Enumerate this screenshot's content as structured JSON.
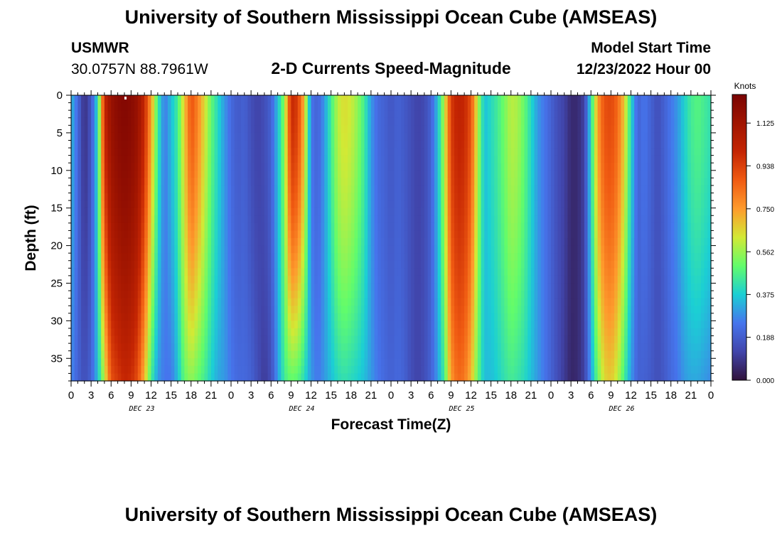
{
  "header": {
    "title": "University of Southern Mississippi Ocean Cube (AMSEAS)",
    "station": "USMWR",
    "coords": "30.0757N  88.7961W",
    "subtitle": "2-D Currents Speed-Magnitude",
    "start_label": "Model Start Time",
    "start_value": "12/23/2022 Hour 00"
  },
  "footer": {
    "title": "University of Southern Mississippi Ocean Cube (AMSEAS)"
  },
  "chart_data": {
    "type": "heatmap",
    "title": "2-D Currents Speed-Magnitude",
    "xlabel": "Forecast Time(Z)",
    "ylabel": "Depth (ft)",
    "x_hours_range": [
      0,
      96
    ],
    "ylim": [
      0,
      38
    ],
    "y_ticks": [
      0,
      5,
      10,
      15,
      20,
      25,
      30,
      35
    ],
    "x_tick_labels": [
      "0",
      "3",
      "6",
      "9",
      "12",
      "15",
      "18",
      "21",
      "0",
      "3",
      "6",
      "9",
      "12",
      "15",
      "18",
      "21",
      "0",
      "3",
      "6",
      "9",
      "12",
      "15",
      "18",
      "21",
      "0",
      "3",
      "6",
      "9",
      "12",
      "15",
      "18",
      "21",
      "0"
    ],
    "day_labels": [
      "DEC 23",
      "DEC 24",
      "DEC 25",
      "DEC 26"
    ],
    "colorbar": {
      "unit": "Knots",
      "range": [
        0,
        1.25
      ],
      "ticks": [
        "0.000",
        "0.188",
        "0.375",
        "0.562",
        "0.750",
        "0.938",
        "1.125"
      ]
    },
    "surface_speed_by_hour": [
      [
        0,
        0.35
      ],
      [
        1,
        0.22
      ],
      [
        2,
        0.07
      ],
      [
        3,
        0.17
      ],
      [
        4,
        0.4
      ],
      [
        5,
        1.0
      ],
      [
        6,
        1.15
      ],
      [
        7,
        1.2
      ],
      [
        8,
        1.22
      ],
      [
        9,
        1.2
      ],
      [
        10,
        1.15
      ],
      [
        11,
        1.0
      ],
      [
        12,
        0.75
      ],
      [
        13,
        0.45
      ],
      [
        14,
        0.25
      ],
      [
        15,
        0.35
      ],
      [
        16,
        0.45
      ],
      [
        17,
        0.68
      ],
      [
        18,
        0.9
      ],
      [
        19,
        0.8
      ],
      [
        20,
        0.65
      ],
      [
        21,
        0.5
      ],
      [
        22,
        0.4
      ],
      [
        23,
        0.3
      ],
      [
        24,
        0.22
      ],
      [
        25,
        0.18
      ],
      [
        26,
        0.2
      ],
      [
        27,
        0.15
      ],
      [
        28,
        0.12
      ],
      [
        29,
        0.15
      ],
      [
        30,
        0.2
      ],
      [
        31,
        0.35
      ],
      [
        32,
        0.55
      ],
      [
        33,
        1.0
      ],
      [
        34,
        0.95
      ],
      [
        35,
        0.7
      ],
      [
        36,
        0.25
      ],
      [
        37,
        0.2
      ],
      [
        38,
        0.3
      ],
      [
        39,
        0.45
      ],
      [
        40,
        0.6
      ],
      [
        41,
        0.65
      ],
      [
        42,
        0.62
      ],
      [
        43,
        0.55
      ],
      [
        44,
        0.45
      ],
      [
        45,
        0.3
      ],
      [
        46,
        0.22
      ],
      [
        47,
        0.2
      ],
      [
        48,
        0.17
      ],
      [
        49,
        0.2
      ],
      [
        50,
        0.18
      ],
      [
        51,
        0.15
      ],
      [
        52,
        0.12
      ],
      [
        53,
        0.14
      ],
      [
        54,
        0.2
      ],
      [
        55,
        0.35
      ],
      [
        56,
        0.6
      ],
      [
        57,
        0.95
      ],
      [
        58,
        1.02
      ],
      [
        59,
        1.0
      ],
      [
        60,
        0.9
      ],
      [
        61,
        0.6
      ],
      [
        62,
        0.35
      ],
      [
        63,
        0.4
      ],
      [
        64,
        0.45
      ],
      [
        65,
        0.52
      ],
      [
        66,
        0.6
      ],
      [
        67,
        0.58
      ],
      [
        68,
        0.5
      ],
      [
        69,
        0.4
      ],
      [
        70,
        0.3
      ],
      [
        71,
        0.25
      ],
      [
        72,
        0.2
      ],
      [
        73,
        0.15
      ],
      [
        74,
        0.12
      ],
      [
        75,
        0.06
      ],
      [
        76,
        0.06
      ],
      [
        77,
        0.12
      ],
      [
        78,
        0.4
      ],
      [
        79,
        0.75
      ],
      [
        80,
        0.9
      ],
      [
        81,
        0.92
      ],
      [
        82,
        0.85
      ],
      [
        83,
        0.68
      ],
      [
        84,
        0.4
      ],
      [
        85,
        0.2
      ],
      [
        86,
        0.25
      ],
      [
        87,
        0.2
      ],
      [
        88,
        0.15
      ],
      [
        89,
        0.2
      ],
      [
        90,
        0.25
      ],
      [
        91,
        0.3
      ],
      [
        92,
        0.38
      ],
      [
        93,
        0.45
      ],
      [
        94,
        0.48
      ],
      [
        95,
        0.45
      ],
      [
        96,
        0.42
      ]
    ],
    "bottom_speed_by_hour": [
      [
        0,
        0.28
      ],
      [
        1,
        0.2
      ],
      [
        2,
        0.15
      ],
      [
        3,
        0.2
      ],
      [
        4,
        0.35
      ],
      [
        5,
        0.6
      ],
      [
        6,
        0.9
      ],
      [
        7,
        0.95
      ],
      [
        8,
        1.0
      ],
      [
        9,
        0.98
      ],
      [
        10,
        0.9
      ],
      [
        11,
        0.7
      ],
      [
        12,
        0.45
      ],
      [
        13,
        0.3
      ],
      [
        14,
        0.25
      ],
      [
        15,
        0.25
      ],
      [
        16,
        0.35
      ],
      [
        17,
        0.5
      ],
      [
        18,
        0.55
      ],
      [
        19,
        0.5
      ],
      [
        20,
        0.45
      ],
      [
        21,
        0.38
      ],
      [
        22,
        0.32
      ],
      [
        23,
        0.3
      ],
      [
        24,
        0.25
      ],
      [
        25,
        0.22
      ],
      [
        26,
        0.22
      ],
      [
        27,
        0.2
      ],
      [
        28,
        0.15
      ],
      [
        29,
        0.1
      ],
      [
        30,
        0.15
      ],
      [
        31,
        0.3
      ],
      [
        32,
        0.45
      ],
      [
        33,
        0.5
      ],
      [
        34,
        0.48
      ],
      [
        35,
        0.4
      ],
      [
        36,
        0.3
      ],
      [
        37,
        0.25
      ],
      [
        38,
        0.3
      ],
      [
        39,
        0.35
      ],
      [
        40,
        0.4
      ],
      [
        41,
        0.42
      ],
      [
        42,
        0.4
      ],
      [
        43,
        0.38
      ],
      [
        44,
        0.35
      ],
      [
        45,
        0.3
      ],
      [
        46,
        0.25
      ],
      [
        47,
        0.22
      ],
      [
        48,
        0.2
      ],
      [
        49,
        0.22
      ],
      [
        50,
        0.2
      ],
      [
        51,
        0.15
      ],
      [
        52,
        0.12
      ],
      [
        53,
        0.15
      ],
      [
        54,
        0.2
      ],
      [
        55,
        0.3
      ],
      [
        56,
        0.45
      ],
      [
        57,
        0.75
      ],
      [
        58,
        0.85
      ],
      [
        59,
        0.82
      ],
      [
        60,
        0.7
      ],
      [
        61,
        0.5
      ],
      [
        62,
        0.35
      ],
      [
        63,
        0.35
      ],
      [
        64,
        0.38
      ],
      [
        65,
        0.42
      ],
      [
        66,
        0.45
      ],
      [
        67,
        0.43
      ],
      [
        68,
        0.4
      ],
      [
        69,
        0.35
      ],
      [
        70,
        0.3
      ],
      [
        71,
        0.25
      ],
      [
        72,
        0.2
      ],
      [
        73,
        0.15
      ],
      [
        74,
        0.1
      ],
      [
        75,
        0.05
      ],
      [
        76,
        0.06
      ],
      [
        77,
        0.12
      ],
      [
        78,
        0.3
      ],
      [
        79,
        0.5
      ],
      [
        80,
        0.65
      ],
      [
        81,
        0.68
      ],
      [
        82,
        0.6
      ],
      [
        83,
        0.45
      ],
      [
        84,
        0.3
      ],
      [
        85,
        0.2
      ],
      [
        86,
        0.2
      ],
      [
        87,
        0.18
      ],
      [
        88,
        0.15
      ],
      [
        89,
        0.18
      ],
      [
        90,
        0.22
      ],
      [
        91,
        0.25
      ],
      [
        92,
        0.3
      ],
      [
        93,
        0.32
      ],
      [
        94,
        0.32
      ],
      [
        95,
        0.3
      ],
      [
        96,
        0.28
      ]
    ]
  }
}
